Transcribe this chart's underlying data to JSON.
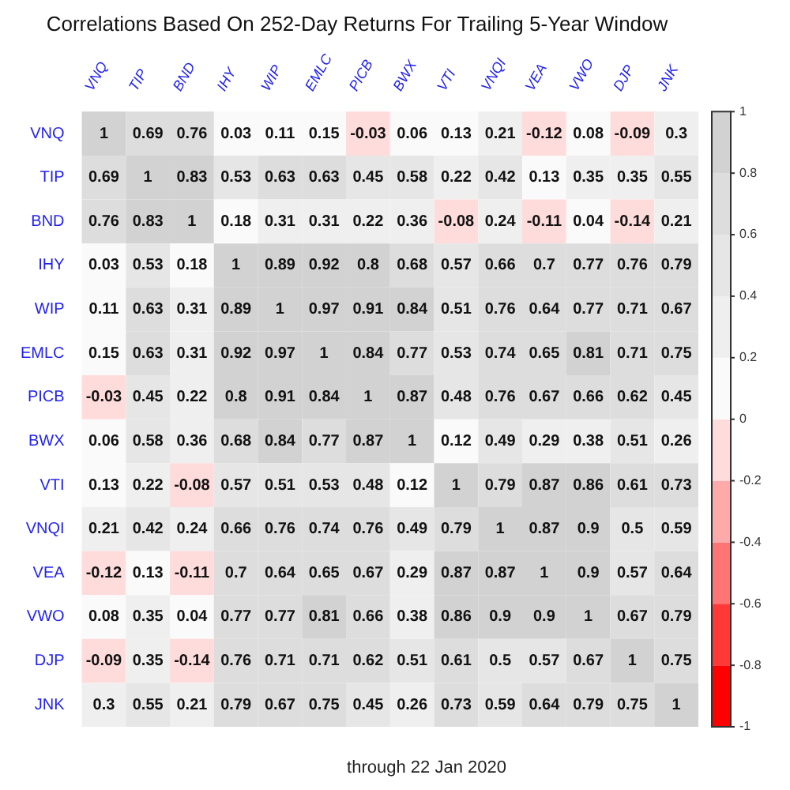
{
  "chart_data": {
    "type": "heatmap",
    "title": "Correlations Based On 252-Day Returns For Trailing 5-Year Window",
    "categories": [
      "VNQ",
      "TIP",
      "BND",
      "IHY",
      "WIP",
      "EMLC",
      "PICB",
      "BWX",
      "VTI",
      "VNQI",
      "VEA",
      "VWO",
      "DJP",
      "JNK"
    ],
    "y_categories": [
      "VNQ",
      "TIP",
      "BND",
      "IHY",
      "WIP",
      "EMLC",
      "PICB",
      "BWX",
      "VTI",
      "VNQI",
      "VEA",
      "VWO",
      "DJP",
      "JNK"
    ],
    "cells": [
      [
        1,
        0.69,
        0.76,
        0.03,
        0.11,
        0.15,
        -0.03,
        0.06,
        0.13,
        0.21,
        -0.12,
        0.08,
        -0.09,
        0.3
      ],
      [
        0.69,
        1,
        0.83,
        0.53,
        0.63,
        0.63,
        0.45,
        0.58,
        0.22,
        0.42,
        0.13,
        0.35,
        0.35,
        0.55
      ],
      [
        0.76,
        0.83,
        1,
        0.18,
        0.31,
        0.31,
        0.22,
        0.36,
        -0.08,
        0.24,
        -0.11,
        0.04,
        -0.14,
        0.21
      ],
      [
        0.03,
        0.53,
        0.18,
        1,
        0.89,
        0.92,
        0.8,
        0.68,
        0.57,
        0.66,
        0.7,
        0.77,
        0.76,
        0.79
      ],
      [
        0.11,
        0.63,
        0.31,
        0.89,
        1,
        0.97,
        0.91,
        0.84,
        0.51,
        0.76,
        0.64,
        0.77,
        0.71,
        0.67
      ],
      [
        0.15,
        0.63,
        0.31,
        0.92,
        0.97,
        1,
        0.84,
        0.77,
        0.53,
        0.74,
        0.65,
        0.81,
        0.71,
        0.75
      ],
      [
        -0.03,
        0.45,
        0.22,
        0.8,
        0.91,
        0.84,
        1,
        0.87,
        0.48,
        0.76,
        0.67,
        0.66,
        0.62,
        0.45
      ],
      [
        0.06,
        0.58,
        0.36,
        0.68,
        0.84,
        0.77,
        0.87,
        1,
        0.12,
        0.49,
        0.29,
        0.38,
        0.51,
        0.26
      ],
      [
        0.13,
        0.22,
        -0.08,
        0.57,
        0.51,
        0.53,
        0.48,
        0.12,
        1,
        0.79,
        0.87,
        0.86,
        0.61,
        0.73
      ],
      [
        0.21,
        0.42,
        0.24,
        0.66,
        0.76,
        0.74,
        0.76,
        0.49,
        0.79,
        1,
        0.87,
        0.9,
        0.5,
        0.59
      ],
      [
        -0.12,
        0.13,
        -0.11,
        0.7,
        0.64,
        0.65,
        0.67,
        0.29,
        0.87,
        0.87,
        1,
        0.9,
        0.57,
        0.64
      ],
      [
        0.08,
        0.35,
        0.04,
        0.77,
        0.77,
        0.81,
        0.66,
        0.38,
        0.86,
        0.9,
        0.9,
        1,
        0.67,
        0.79
      ],
      [
        -0.09,
        0.35,
        -0.14,
        0.76,
        0.71,
        0.71,
        0.62,
        0.51,
        0.61,
        0.5,
        0.57,
        0.67,
        1,
        0.75
      ],
      [
        0.3,
        0.55,
        0.21,
        0.79,
        0.67,
        0.75,
        0.45,
        0.26,
        0.73,
        0.59,
        0.64,
        0.79,
        0.75,
        1
      ]
    ],
    "data_labels": true,
    "clim": [
      -1,
      1
    ],
    "cticks": [
      -1,
      -0.8,
      -0.6,
      -0.4,
      -0.2,
      0,
      0.2,
      0.4,
      0.6,
      0.8,
      1
    ],
    "annotations": [
      "through 22 Jan 2020"
    ]
  }
}
